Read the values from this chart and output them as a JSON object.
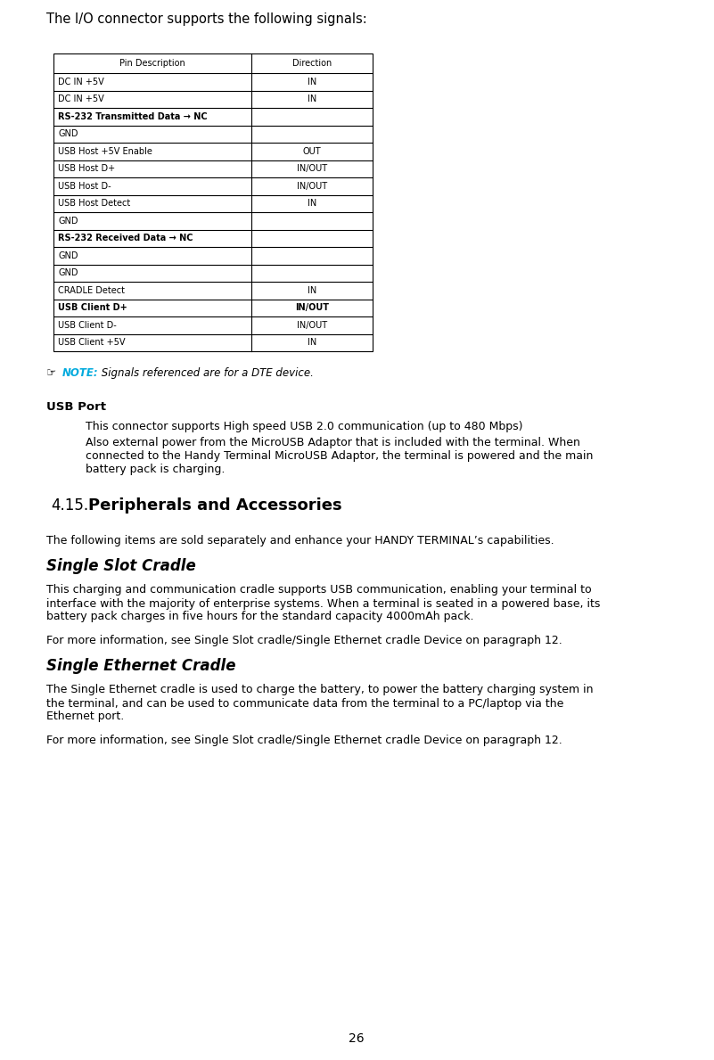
{
  "bg_color": "#ffffff",
  "page_number": "26",
  "intro_text": "The I/O connector supports the following signals:",
  "table_header": [
    "Pin Description",
    "Direction"
  ],
  "table_rows": [
    [
      "DC IN +5V",
      "IN",
      false
    ],
    [
      "DC IN +5V",
      "IN",
      false
    ],
    [
      "RS-232 Transmitted Data → NC",
      "",
      true
    ],
    [
      "GND",
      "",
      false
    ],
    [
      "USB Host +5V Enable",
      "OUT",
      false
    ],
    [
      "USB Host D+",
      "IN/OUT",
      false
    ],
    [
      "USB Host D-",
      "IN/OUT",
      false
    ],
    [
      "USB Host Detect",
      "IN",
      false
    ],
    [
      "GND",
      "",
      false
    ],
    [
      "RS-232 Received Data → NC",
      "",
      true
    ],
    [
      "GND",
      "",
      false
    ],
    [
      "GND",
      "",
      false
    ],
    [
      "CRADLE Detect",
      "IN",
      false
    ],
    [
      "USB Client D+",
      "IN/OUT",
      true
    ],
    [
      "USB Client D-",
      "IN/OUT",
      false
    ],
    [
      "USB Client +5V",
      "IN",
      false
    ]
  ],
  "note_text": " Signals referenced are for a DTE device.",
  "note_label": "NOTE:",
  "usb_port_heading": "USB Port",
  "usb_para1": "This connector supports High speed USB 2.0 communication (up to 480 Mbps)",
  "usb_para2": "Also external power from the MicroUSB Adaptor that is included with the terminal. When\nconnected to the Handy Terminal MicroUSB Adaptor, the terminal is powered and the main\nbattery pack is charging.",
  "section_num": "4.15.",
  "section_title": "  Peripherals and Accessories",
  "body_items": [
    {
      "text": "The following items are sold separately and enhance your HANDY TERMINAL’s capabilities.",
      "type": "para"
    },
    {
      "text": "Single Slot Cradle",
      "type": "heading"
    },
    {
      "text": "This charging and communication cradle supports USB communication, enabling your terminal to\ninterface with the majority of enterprise systems. When a terminal is seated in a powered base, its\nbattery pack charges in five hours for the standard capacity 4000mAh pack.",
      "type": "para"
    },
    {
      "text": "For more information, see Single Slot cradle/Single Ethernet cradle Device on paragraph 12.",
      "type": "para"
    },
    {
      "text": "Single Ethernet Cradle",
      "type": "heading"
    },
    {
      "text": "The Single Ethernet cradle is used to charge the battery, to power the battery charging system in\nthe terminal, and can be used to communicate data from the terminal to a PC/laptop via the\nEthernet port.",
      "type": "para"
    },
    {
      "text": "For more information, see Single Slot cradle/Single Ethernet cradle Device on paragraph 12.",
      "type": "para"
    }
  ],
  "dpi": 100,
  "fig_w": 8.01,
  "fig_h": 11.89
}
